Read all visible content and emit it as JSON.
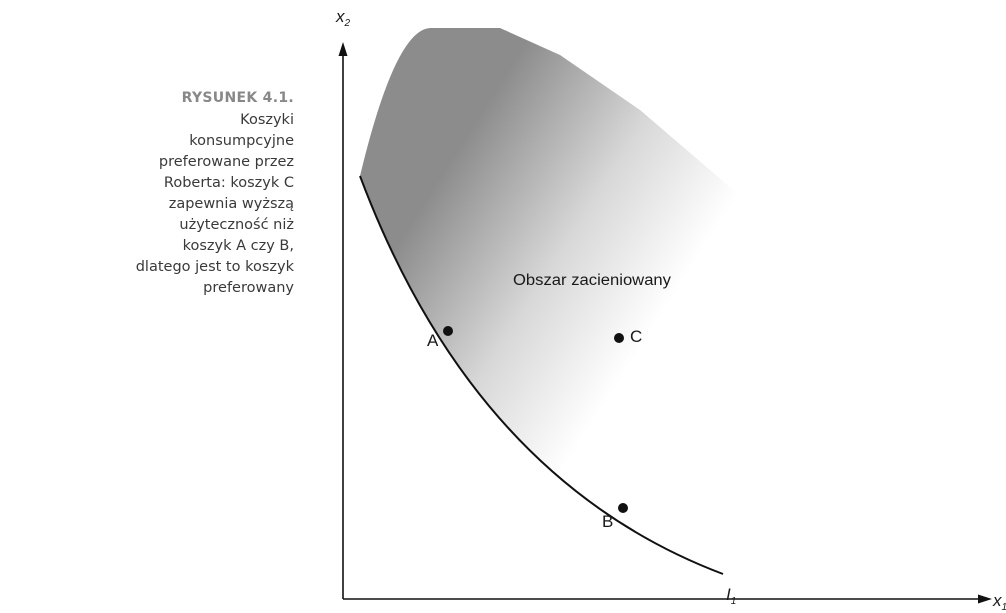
{
  "caption": {
    "label": "RYSUNEK 4.1.",
    "lines": [
      "Koszyki",
      "konsumpcyjne",
      "preferowane przez",
      "Roberta: koszyk C",
      "zapewnia wyższą",
      "użyteczność niż",
      "koszyk A czy B,",
      "dlatego jest to koszyk",
      "preferowany"
    ]
  },
  "diagram": {
    "y_axis_label": "x",
    "y_axis_subscript": "2",
    "x_axis_label": "x",
    "x_axis_subscript": "1",
    "shaded_region_label": "Obszar zacieniowany",
    "curve_label": "I",
    "curve_subscript": "1",
    "points": [
      {
        "id": "A",
        "label": "A"
      },
      {
        "id": "B",
        "label": "B"
      },
      {
        "id": "C",
        "label": "C"
      }
    ],
    "colors": {
      "shade_dark": "#8c8c8c",
      "shade_light": "#ffffff",
      "ink": "#111111"
    }
  }
}
